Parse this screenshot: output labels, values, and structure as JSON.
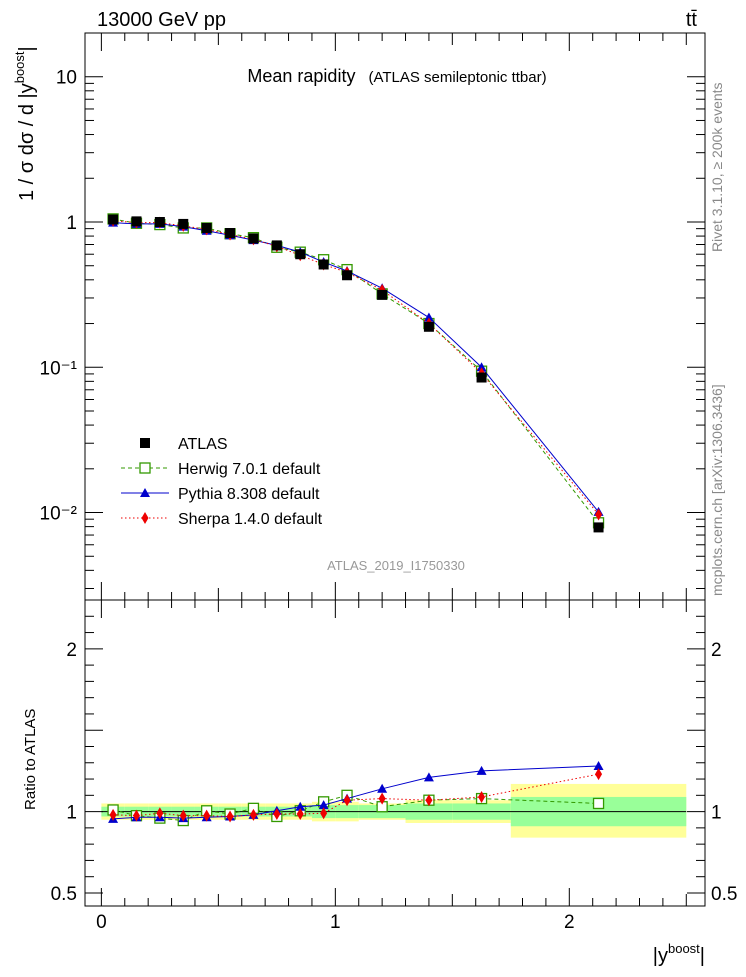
{
  "header": {
    "energy_label": "13000 GeV pp",
    "process_label": "tt̄",
    "title_main": "Mean rapidity",
    "title_sub": "(ATLAS semileptonic ttbar)",
    "analysis_id": "ATLAS_2019_I1750330",
    "side_label_top": "Rivet 3.1.10, ≥ 200k events",
    "side_label_bottom": "mcplots.cern.ch [arXiv:1306.3436]"
  },
  "colors": {
    "data": "#000000",
    "herwig": "#339900",
    "pythia": "#0000cc",
    "sherpa": "#ee0000",
    "band_inner": "#99ff99",
    "band_outer": "#ffff99"
  },
  "chart_data": {
    "type": "scatter",
    "x_bins": [
      [
        0.0,
        0.1
      ],
      [
        0.1,
        0.2
      ],
      [
        0.2,
        0.3
      ],
      [
        0.3,
        0.4
      ],
      [
        0.4,
        0.5
      ],
      [
        0.5,
        0.6
      ],
      [
        0.6,
        0.7
      ],
      [
        0.7,
        0.8
      ],
      [
        0.8,
        0.9
      ],
      [
        0.9,
        1.0
      ],
      [
        1.0,
        1.1
      ],
      [
        1.1,
        1.3
      ],
      [
        1.3,
        1.5
      ],
      [
        1.5,
        1.75
      ],
      [
        1.75,
        2.5
      ]
    ],
    "x": [
      0.05,
      0.15,
      0.25,
      0.35,
      0.45,
      0.55,
      0.65,
      0.75,
      0.85,
      0.95,
      1.05,
      1.2,
      1.4,
      1.625,
      2.125
    ],
    "series": [
      {
        "name": "ATLAS",
        "key": "data",
        "marker": "square-filled",
        "values": [
          1.04,
          1.01,
          1.0,
          0.97,
          0.91,
          0.84,
          0.77,
          0.69,
          0.6,
          0.51,
          0.43,
          0.315,
          0.19,
          0.085,
          0.0079
        ],
        "ratio": [
          1,
          1,
          1,
          1,
          1,
          1,
          1,
          1,
          1,
          1,
          1,
          1,
          1,
          1,
          1
        ]
      },
      {
        "name": "Herwig 7.0.1 default",
        "key": "herwig",
        "marker": "square-open",
        "line": "dashed",
        "values": [
          1.05,
          0.98,
          0.96,
          0.91,
          0.91,
          0.83,
          0.78,
          0.67,
          0.62,
          0.55,
          0.47,
          0.32,
          0.2,
          0.094,
          0.0085
        ],
        "ratio": [
          1.01,
          0.975,
          0.96,
          0.945,
          1.005,
          0.985,
          1.02,
          0.97,
          1.005,
          1.06,
          1.1,
          1.03,
          1.07,
          1.08,
          1.05
        ]
      },
      {
        "name": "Pythia 8.308 default",
        "key": "pythia",
        "marker": "triangle-filled",
        "line": "solid",
        "values": [
          0.99,
          0.97,
          0.97,
          0.93,
          0.87,
          0.81,
          0.75,
          0.69,
          0.62,
          0.53,
          0.46,
          0.35,
          0.22,
          0.1,
          0.0101
        ],
        "ratio": [
          0.955,
          0.965,
          0.965,
          0.96,
          0.965,
          0.97,
          0.98,
          1.005,
          1.03,
          1.04,
          1.08,
          1.14,
          1.21,
          1.25,
          1.28
        ]
      },
      {
        "name": "Sherpa 1.4.0 default",
        "key": "sherpa",
        "marker": "diamond-filled",
        "line": "dotted",
        "values": [
          1.02,
          0.99,
          0.99,
          0.94,
          0.89,
          0.82,
          0.76,
          0.68,
          0.59,
          0.51,
          0.45,
          0.34,
          0.2,
          0.091,
          0.0097
        ],
        "ratio": [
          0.98,
          0.975,
          0.99,
          0.975,
          0.975,
          0.97,
          0.98,
          0.985,
          0.985,
          0.99,
          1.07,
          1.08,
          1.07,
          1.09,
          1.23
        ]
      }
    ],
    "ratio_band_inner": [
      [
        0.97,
        1.03
      ],
      [
        0.97,
        1.03
      ],
      [
        0.97,
        1.03
      ],
      [
        0.97,
        1.03
      ],
      [
        0.97,
        1.03
      ],
      [
        0.97,
        1.03
      ],
      [
        0.97,
        1.03
      ],
      [
        0.97,
        1.03
      ],
      [
        0.97,
        1.03
      ],
      [
        0.96,
        1.04
      ],
      [
        0.96,
        1.04
      ],
      [
        0.96,
        1.04
      ],
      [
        0.95,
        1.05
      ],
      [
        0.95,
        1.05
      ],
      [
        0.91,
        1.09
      ]
    ],
    "ratio_band_outer": [
      [
        0.95,
        1.05
      ],
      [
        0.95,
        1.05
      ],
      [
        0.95,
        1.05
      ],
      [
        0.95,
        1.05
      ],
      [
        0.95,
        1.05
      ],
      [
        0.95,
        1.05
      ],
      [
        0.95,
        1.05
      ],
      [
        0.95,
        1.05
      ],
      [
        0.95,
        1.05
      ],
      [
        0.94,
        1.06
      ],
      [
        0.94,
        1.06
      ],
      [
        0.95,
        1.05
      ],
      [
        0.93,
        1.07
      ],
      [
        0.93,
        1.07
      ],
      [
        0.84,
        1.17
      ]
    ],
    "ylabel": "1 / σ dσ / d |y^boost|",
    "ylabel_ratio": "Ratio to ATLAS",
    "xlabel": "|y^boost|",
    "xlim": [
      -0.07,
      2.58
    ],
    "ylim": [
      0.0025,
      20
    ],
    "ylim_ratio": [
      0.42,
      2.3
    ],
    "yscale": "log",
    "main_ticks": [
      {
        "v": 10,
        "label": "10"
      },
      {
        "v": 1,
        "label": "1"
      },
      {
        "v": 0.1,
        "label": "10⁻¹"
      },
      {
        "v": 0.01,
        "label": "10⁻²"
      }
    ],
    "ratio_ticks": [
      {
        "v": 2,
        "label": "2"
      },
      {
        "v": 1,
        "label": "1"
      },
      {
        "v": 0.5,
        "label": "0.5"
      }
    ],
    "x_ticks": [
      {
        "v": 0,
        "label": "0"
      },
      {
        "v": 1,
        "label": "1"
      },
      {
        "v": 2,
        "label": "2"
      }
    ],
    "legend_position": "lower-left"
  }
}
